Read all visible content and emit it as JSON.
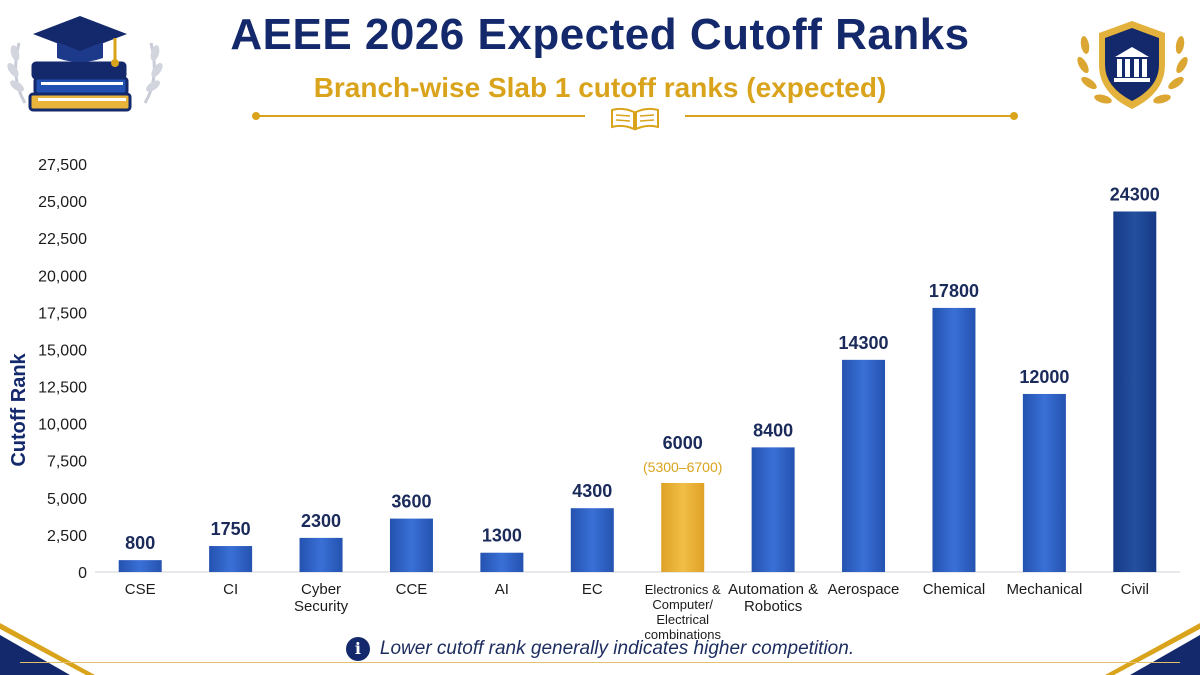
{
  "header": {
    "title": "AEEE 2026 Expected Cutoff Ranks",
    "subtitle": "Branch-wise Slab 1 cutoff ranks (expected)"
  },
  "icons": {
    "left": "graduation-books-icon",
    "right": "university-shield-icon",
    "divider": "open-book-icon",
    "note": "info-icon"
  },
  "colors": {
    "title": "#13296b",
    "accent_gold": "#d9a41c",
    "bar_blue": "#2b5fc0",
    "bar_highlight": "#e6ad2c",
    "axis_text": "#1c1c1c"
  },
  "note": {
    "icon_glyph": "i",
    "text": "Lower cutoff rank generally indicates higher competition."
  },
  "chart_data": {
    "type": "bar",
    "title": "",
    "xlabel": "",
    "ylabel": "Cutoff Rank",
    "ylim": [
      0,
      27500
    ],
    "yticks": [
      0,
      2500,
      5000,
      7500,
      10000,
      12500,
      15000,
      17500,
      20000,
      22500,
      25000,
      27500
    ],
    "ytick_labels": [
      "0",
      "2,500",
      "5,000",
      "7,500",
      "10,000",
      "12,500",
      "15,000",
      "17,500",
      "20,000",
      "22,500",
      "25,000",
      "27,500"
    ],
    "grid": false,
    "categories": [
      "CSE",
      "CI",
      "Cyber Security",
      "CCE",
      "AI",
      "EC",
      "Electronics & Computer/ Electrical combinations",
      "Automation & Robotics",
      "Aerospace",
      "Chemical",
      "Mechanical",
      "Civil"
    ],
    "category_lines": [
      [
        "CSE"
      ],
      [
        "CI"
      ],
      [
        "Cyber",
        "Security"
      ],
      [
        "CCE"
      ],
      [
        "AI"
      ],
      [
        "EC"
      ],
      [
        "Electronics &",
        "Computer/",
        "Electrical",
        "combinations"
      ],
      [
        "Automation &",
        "Robotics"
      ],
      [
        "Aerospace"
      ],
      [
        "Chemical"
      ],
      [
        "Mechanical"
      ],
      [
        "Civil"
      ]
    ],
    "values": [
      800,
      1750,
      2300,
      3600,
      1300,
      4300,
      6000,
      8400,
      14300,
      17800,
      12000,
      24300
    ],
    "data_labels": [
      "800",
      "1750",
      "2300",
      "3600",
      "1300",
      "4300",
      "6000",
      "8400",
      "14300",
      "17800",
      "12000",
      "24300"
    ],
    "highlight": {
      "category": "Electronics & Computer/ Electrical combinations",
      "range_label": "(5300–6700)"
    }
  }
}
